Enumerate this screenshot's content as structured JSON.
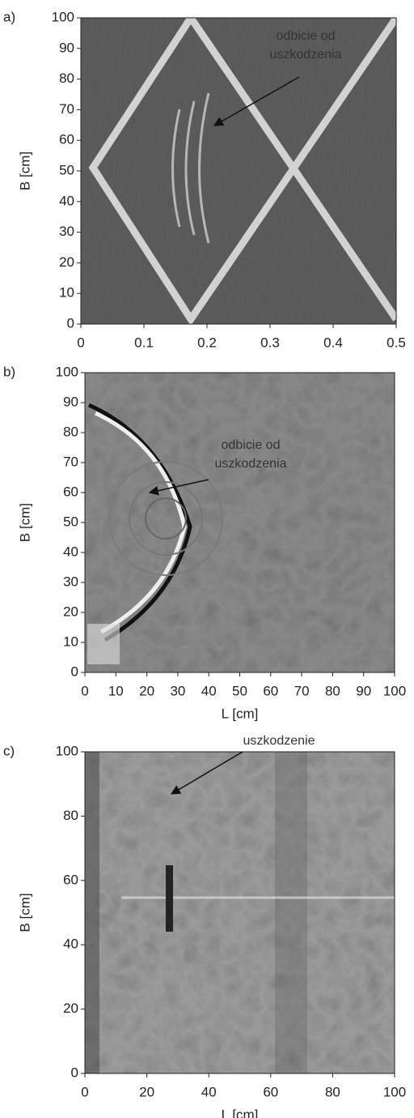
{
  "chart_data": [
    {
      "type": "image",
      "panel_label": "a)",
      "ylabel": "B [cm]",
      "xlim": [
        0,
        0.5
      ],
      "ylim": [
        0,
        100
      ],
      "xticks": [
        0,
        0.1,
        0.2,
        0.3,
        0.4,
        0.5
      ],
      "yticks": [
        0,
        10,
        20,
        30,
        40,
        50,
        60,
        70,
        80,
        90,
        100
      ],
      "annotation": [
        "odbicie od",
        "uszkodzenia"
      ]
    },
    {
      "type": "image",
      "panel_label": "b)",
      "ylabel": "B [cm]",
      "xlabel": "L [cm]",
      "xlim": [
        0,
        100
      ],
      "ylim": [
        0,
        100
      ],
      "xticks": [
        0,
        10,
        20,
        30,
        40,
        50,
        60,
        70,
        80,
        90,
        100
      ],
      "yticks": [
        0,
        10,
        20,
        30,
        40,
        50,
        60,
        70,
        80,
        90,
        100
      ],
      "annotation": [
        "odbicie od",
        "uszkodzenia"
      ]
    },
    {
      "type": "image",
      "panel_label": "c)",
      "ylabel": "B [cm]",
      "xlabel": "L [cm]",
      "xlim": [
        0,
        100
      ],
      "ylim": [
        0,
        100
      ],
      "xticks": [
        0,
        20,
        40,
        60,
        80,
        100
      ],
      "yticks": [
        0,
        20,
        40,
        60,
        80,
        100
      ],
      "annotation": [
        "uszkodzenie"
      ]
    }
  ]
}
